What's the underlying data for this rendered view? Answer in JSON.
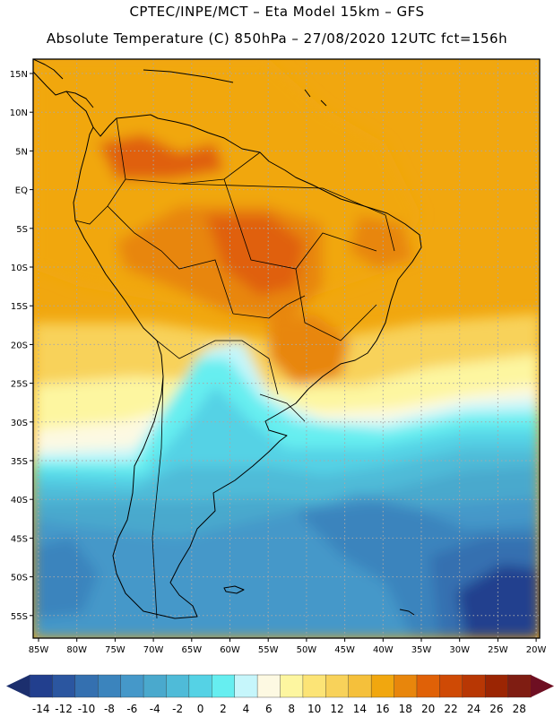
{
  "header": {
    "line1": "CPTEC/INPE/MCT –  Eta Model 15km – GFS",
    "line2": "Absolute Temperature (C) 850hPa – 27/08/2020 12UTC fct=156h"
  },
  "axes": {
    "lat_labels": [
      "15N",
      "10N",
      "5N",
      "EQ",
      "5S",
      "10S",
      "15S",
      "20S",
      "25S",
      "30S",
      "35S",
      "40S",
      "45S",
      "50S",
      "55S"
    ],
    "lon_labels": [
      "85W",
      "80W",
      "75W",
      "70W",
      "65W",
      "60W",
      "55W",
      "50W",
      "45W",
      "40W",
      "35W",
      "30W",
      "25W",
      "20W"
    ]
  },
  "colorbar": {
    "labels": [
      "-14",
      "-12",
      "-10",
      "-8",
      "-6",
      "-4",
      "-2",
      "0",
      "2",
      "4",
      "6",
      "8",
      "10",
      "12",
      "14",
      "16",
      "18",
      "20",
      "22",
      "24",
      "26",
      "28"
    ],
    "colors": [
      "#223f8e",
      "#2b56a0",
      "#3470b0",
      "#3b84bd",
      "#4598c9",
      "#4aa9cd",
      "#4fbbd8",
      "#55d2e5",
      "#66eef0",
      "#c6f6fb",
      "#fdf9e2",
      "#fdf6a0",
      "#fce476",
      "#f8d25a",
      "#f5c03b",
      "#f1a70f",
      "#e8860c",
      "#e06107",
      "#cf4a05",
      "#b83704",
      "#9b2503",
      "#7f1d12"
    ],
    "left_arrow_color": "#1c2f6e",
    "right_arrow_color": "#6e0f22"
  },
  "map_colors": {
    "ocean_warm": "#f1a70f",
    "ocean_hot": "#e8860c",
    "land_hot": "#e06107",
    "land_very_hot": "#cf4a05",
    "subtropics_yellow": "#f8d25a",
    "pale_yellow": "#fdf6a0",
    "cream": "#fdf9e2",
    "light_cyan": "#c6f6fb",
    "cyan": "#66eef0",
    "cyan2": "#55d2e5",
    "blue1": "#4fbbd8",
    "blue2": "#4aa9cd",
    "blue3": "#4598c9",
    "blue4": "#3b84bd",
    "blue5": "#3470b0",
    "blue6": "#2b56a0",
    "blue7": "#223f8e"
  }
}
